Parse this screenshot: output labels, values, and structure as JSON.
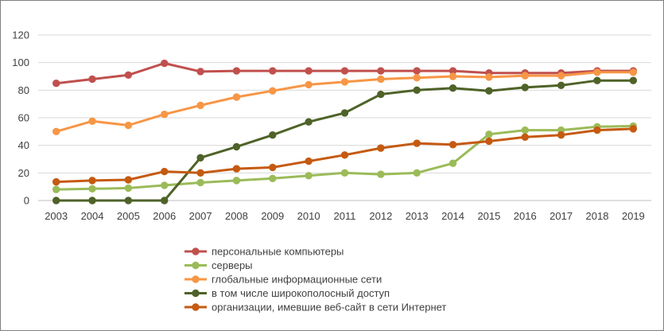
{
  "chart_data": {
    "type": "line",
    "title": "",
    "xlabel": "",
    "ylabel": "",
    "ylim": [
      0,
      120
    ],
    "yticks": [
      "0",
      "20",
      "40",
      "60",
      "80",
      "100",
      "120"
    ],
    "grid": true,
    "legend_position": "bottom",
    "categories": [
      "2003",
      "2004",
      "2005",
      "2006",
      "2007",
      "2008",
      "2009",
      "2010",
      "2011",
      "2012",
      "2013",
      "2014",
      "2015",
      "2016",
      "2017",
      "2018",
      "2019"
    ],
    "series": [
      {
        "name": "персональные компьютеры",
        "color": "#c0504d",
        "values": [
          85,
          88,
          91,
          99.5,
          93.5,
          94,
          94,
          94,
          94,
          94,
          94,
          94,
          92.5,
          92.5,
          92.5,
          94,
          94
        ]
      },
      {
        "name": "серверы",
        "color": "#9bbb59",
        "values": [
          8,
          8.5,
          9,
          11,
          13,
          14.5,
          16,
          18,
          20,
          19,
          20,
          27,
          48,
          51,
          51,
          53.5,
          54
        ]
      },
      {
        "name": "глобальные информационные сети",
        "color": "#f79646",
        "values": [
          50,
          57.5,
          54.5,
          62.5,
          69,
          75,
          79.5,
          84,
          86,
          88,
          89,
          90,
          89.5,
          90.5,
          90.5,
          93,
          93
        ]
      },
      {
        "name": "в том числе широкополосный доступ",
        "color": "#4f6228",
        "values": [
          0,
          0,
          0,
          0,
          31,
          39,
          47.5,
          57,
          63.5,
          77,
          80,
          81.5,
          79.5,
          82,
          83.5,
          87,
          87
        ]
      },
      {
        "name": "организации, имевшие веб-сайт в сети Интернет",
        "color": "#c55a11",
        "values": [
          13.5,
          14.5,
          15,
          21,
          20,
          23,
          24,
          28.5,
          33,
          38,
          41.5,
          40.5,
          43,
          46,
          47.5,
          51,
          52
        ]
      }
    ]
  }
}
